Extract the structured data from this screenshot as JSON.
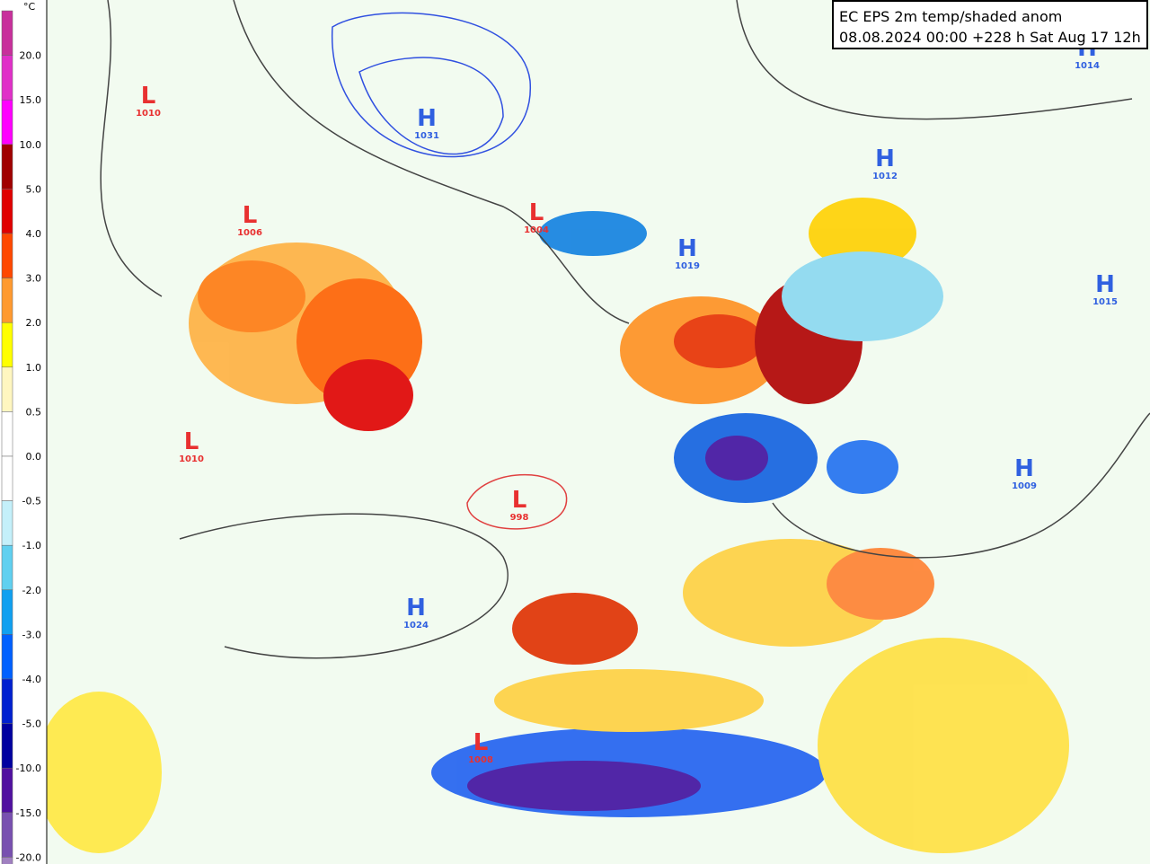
{
  "header": {
    "line1": "EC EPS 2m temp/shaded anom",
    "line2": "08.08.2024 00:00 +228 h Sat Aug 17 12h"
  },
  "colorbar": {
    "unit": "°C",
    "labels": [
      "20.0",
      "15.0",
      "10.0",
      "5.0",
      "4.0",
      "3.0",
      "2.0",
      "1.0",
      "0.5",
      "0.0",
      "-0.5",
      "-1.0",
      "-2.0",
      "-3.0",
      "-4.0",
      "-5.0",
      "-10.0",
      "-15.0",
      "-20.0"
    ],
    "colors": [
      "#c8309c",
      "#e030c8",
      "#ff00ff",
      "#a00000",
      "#e00000",
      "#ff4800",
      "#ff9a30",
      "#ffff00",
      "#fff6c0",
      "#ffffff",
      "#ffffff",
      "#c4f0fa",
      "#60d0f0",
      "#10a0f0",
      "#0060ff",
      "#0020d0",
      "#0000a0",
      "#5010a0",
      "#7850b0",
      "#a080c0"
    ]
  },
  "pressure_centers": [
    {
      "type": "L",
      "value": "1010"
    },
    {
      "type": "H",
      "value": "1031"
    },
    {
      "type": "L",
      "value": "1006"
    },
    {
      "type": "L",
      "value": "1004"
    },
    {
      "type": "H",
      "value": "1019"
    },
    {
      "type": "H",
      "value": "1012"
    },
    {
      "type": "H",
      "value": "1014"
    },
    {
      "type": "H",
      "value": "1015"
    },
    {
      "type": "L",
      "value": "1010"
    },
    {
      "type": "H",
      "value": "1009"
    },
    {
      "type": "L",
      "value": "998"
    },
    {
      "type": "H",
      "value": "1024"
    },
    {
      "type": "L",
      "value": "1008"
    }
  ]
}
